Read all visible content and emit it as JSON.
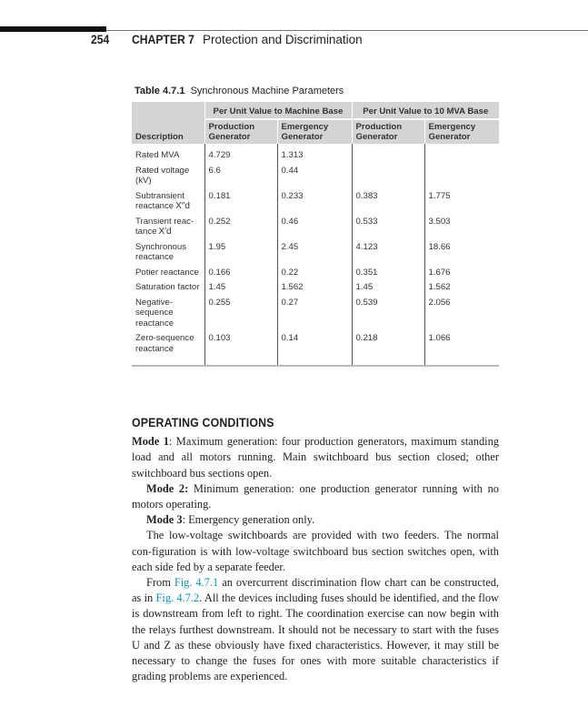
{
  "header": {
    "page_number": "254",
    "chapter": "CHAPTER 7",
    "chapter_title": "Protection and Discrimination"
  },
  "table": {
    "label": "Table 4.7.1",
    "title": "Synchronous Machine Parameters",
    "group_headers": [
      "Per Unit Value to Machine Base",
      "Per Unit Value to 10 MVA Base"
    ],
    "columns": [
      "Description",
      "Production Generator",
      "Emergency Generator",
      "Production Generator",
      "Emergency Generator"
    ],
    "rows": [
      {
        "desc": "Rated MVA",
        "sym": "",
        "values": [
          "4.729",
          "1.313",
          "",
          ""
        ]
      },
      {
        "desc": "Rated voltage (kV)",
        "sym": "",
        "values": [
          "6.6",
          "0.44",
          "",
          ""
        ]
      },
      {
        "desc": "Subtransient reactance",
        "sym": "X″d",
        "values": [
          "0.181",
          "0.233",
          "0.383",
          "1.775"
        ]
      },
      {
        "desc": "Transient reac-tance",
        "sym": "X′d",
        "values": [
          "0.252",
          "0.46",
          "0.533",
          "3.503"
        ]
      },
      {
        "desc": "Synchronous reactance",
        "sym": "",
        "values": [
          "1.95",
          "2.45",
          "4.123",
          "18.66"
        ]
      },
      {
        "desc": "Potier reactance",
        "sym": "",
        "values": [
          "0.166",
          "0.22",
          "0.351",
          "1.676"
        ]
      },
      {
        "desc": "Saturation factor",
        "sym": "",
        "values": [
          "1.45",
          "1.562",
          "1.45",
          "1.562"
        ]
      },
      {
        "desc": "Negative-sequence reactance",
        "sym": "",
        "values": [
          "0.255",
          "0.27",
          "0.539",
          "2.056"
        ]
      },
      {
        "desc": "Zero-sequence reactance",
        "sym": "",
        "values": [
          "0.103",
          "0.14",
          "0.218",
          "1.066"
        ]
      }
    ]
  },
  "section": {
    "heading": "OPERATING CONDITIONS",
    "mode1_label": "Mode 1",
    "mode1_text": ": Maximum generation: four production generators, maximum standing load and all motors running. Main switchboard bus section closed; other switchboard bus sections open.",
    "mode2_label": "Mode 2:",
    "mode2_text": " Minimum generation: one production generator running with no motors operating.",
    "mode3_label": "Mode 3",
    "mode3_text": ": Emergency generation only.",
    "para1": "The low-voltage switchboards are provided with two feeders. The normal con-figuration is with low-voltage switchboard bus section switches open, with each side fed by a separate feeder.",
    "para2_a": "From ",
    "para2_link1": "Fig. 4.7.1",
    "para2_b": " an overcurrent discrimination flow chart can be constructed, as in ",
    "para2_link2": "Fig. 4.7.2",
    "para2_c": ". All the devices including fuses should be identified, and the flow is downstream from left to right. The coordination exercise can now begin with the relays furthest downstream. It should not be necessary to start with the fuses U and Z as these obviously have fixed characteristics. However, it may still be necessary to change the fuses for ones with more suitable characteristics if grading problems are experienced."
  }
}
